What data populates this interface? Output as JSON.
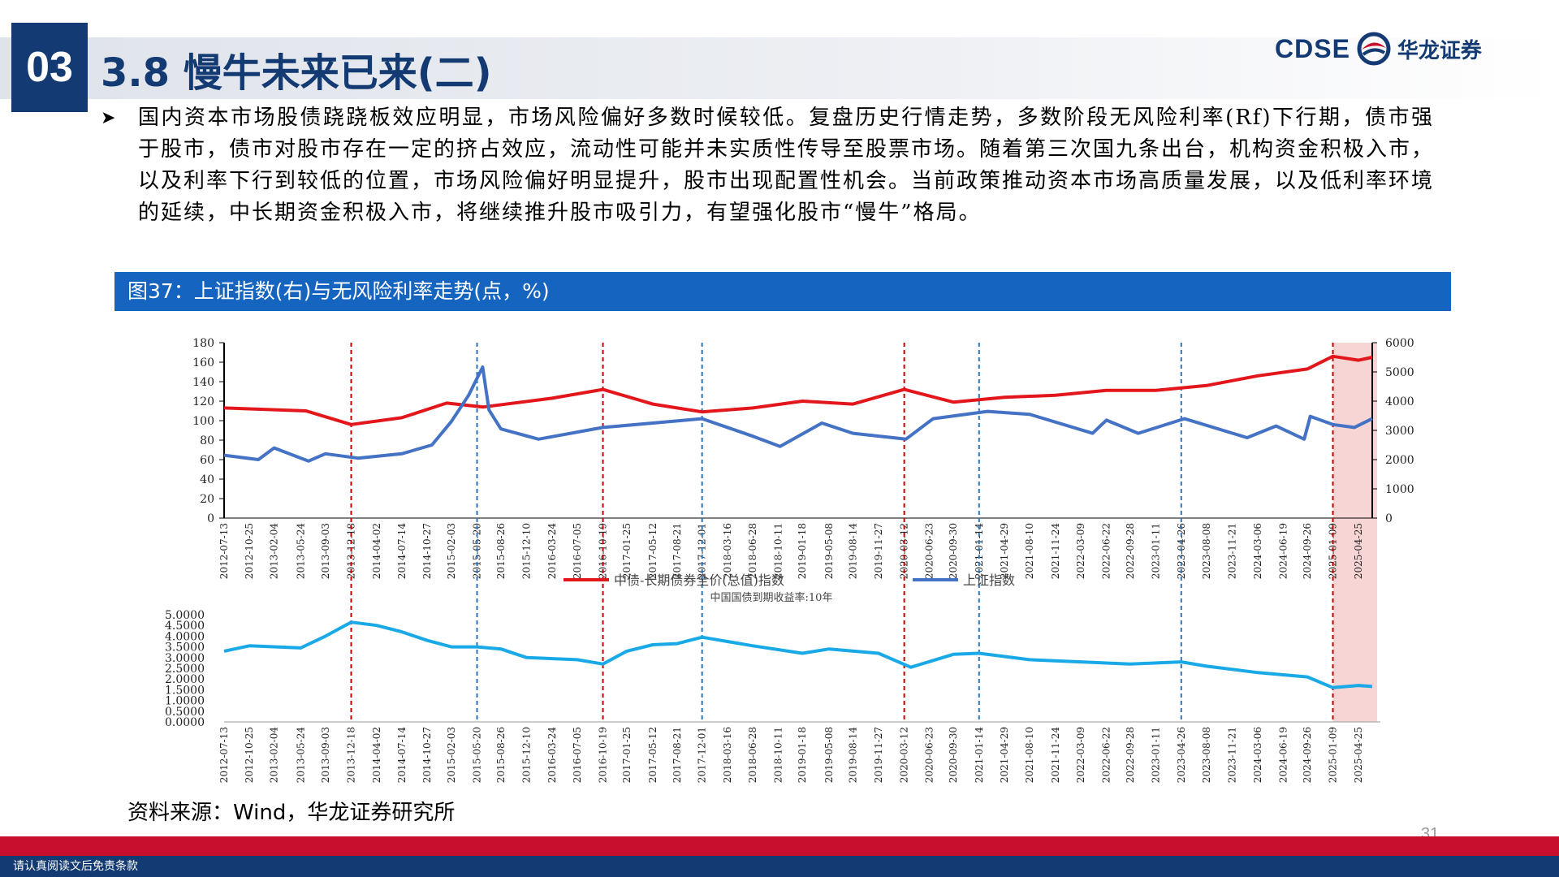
{
  "header": {
    "section_number": "03",
    "title": "3.8 慢牛未来已来(二)",
    "logo_en": "CDSE",
    "logo_cn": "华龙证券"
  },
  "bullet_text": "国内资本市场股债跷跷板效应明显，市场风险偏好多数时候较低。复盘历史行情走势，多数阶段无风险利率(Rf)下行期，债市强于股市，债市对股市存在一定的挤占效应，流动性可能并未实质性传导至股票市场。随着第三次国九条出台，机构资金积极入市，以及利率下行到较低的位置，市场风险偏好明显提升，股市出现配置性机会。当前政策推动资本市场高质量发展，以及低利率环境的延续，中长期资金积极入市，将继续推升股市吸引力，有望强化股市“慢牛”格局。",
  "figure_title": "图37：上证指数(右)与无风险利率走势(点，%)",
  "source": "资料来源：Wind，华龙证券研究所",
  "page_number": "31",
  "footer_disclaimer": "请认真阅读文后免责条款",
  "colors": {
    "navy": "#133a72",
    "fig_bar": "#1565c0",
    "bond_series": "#e3171b",
    "sse_series": "#4472c4",
    "yield_series": "#19a9e6",
    "red_vline": "#c00000",
    "blue_vline": "#2e75b6",
    "highlight": "#f4c7c7"
  },
  "chart_data": [
    {
      "type": "line",
      "x_type": "date",
      "x_range": [
        "2012-07-13",
        "2025-06-30"
      ],
      "ticks": [
        "2012-07-13",
        "2012-10-25",
        "2013-02-04",
        "2013-05-24",
        "2013-09-03",
        "2013-12-18",
        "2014-04-02",
        "2014-07-14",
        "2014-10-27",
        "2015-02-03",
        "2015-05-20",
        "2015-08-26",
        "2015-12-10",
        "2016-03-24",
        "2016-07-05",
        "2016-10-19",
        "2017-01-25",
        "2017-05-12",
        "2017-08-21",
        "2017-12-01",
        "2018-03-16",
        "2018-06-28",
        "2018-10-11",
        "2019-01-18",
        "2019-05-08",
        "2019-08-14",
        "2019-11-27",
        "2020-03-12",
        "2020-06-23",
        "2020-09-30",
        "2021-01-14",
        "2021-04-29",
        "2021-08-10",
        "2021-11-24",
        "2022-03-09",
        "2022-06-22",
        "2022-09-28",
        "2023-01-11",
        "2023-04-26",
        "2023-08-08",
        "2023-11-21",
        "2024-03-06",
        "2024-06-19",
        "2024-09-26",
        "2025-01-09",
        "2025-04-25"
      ],
      "y_left_range": [
        0,
        180
      ],
      "y_left_ticks": [
        0,
        20,
        40,
        60,
        80,
        100,
        120,
        140,
        160,
        180
      ],
      "y_right_range": [
        0,
        6000
      ],
      "y_right_ticks": [
        0,
        1000,
        2000,
        3000,
        4000,
        5000,
        6000
      ],
      "legend_position": "bottom",
      "series": [
        {
          "name": "中债-长期债券全价(总值)指数",
          "axis": "left",
          "color": "#e3171b",
          "x": [
            "2012-07-13",
            "2013-06-15",
            "2013-12-18",
            "2014-07-14",
            "2015-01-15",
            "2015-06-15",
            "2016-03-24",
            "2016-10-19",
            "2017-05-12",
            "2017-12-01",
            "2018-06-28",
            "2019-01-18",
            "2019-08-14",
            "2020-03-12",
            "2020-09-30",
            "2021-04-29",
            "2021-11-24",
            "2022-06-22",
            "2023-01-11",
            "2023-08-08",
            "2024-03-06",
            "2024-09-26",
            "2025-01-09",
            "2025-04-25",
            "2025-06-20"
          ],
          "values": [
            113,
            110,
            96,
            103,
            118,
            114,
            123,
            132,
            117,
            109,
            113,
            120,
            117,
            132,
            119,
            124,
            126,
            131,
            131,
            136,
            146,
            153,
            166,
            162,
            165
          ]
        },
        {
          "name": "上证指数",
          "axis": "right",
          "color": "#4472c4",
          "x": [
            "2012-07-13",
            "2012-12-01",
            "2013-02-04",
            "2013-06-25",
            "2013-09-03",
            "2014-01-15",
            "2014-07-14",
            "2014-11-15",
            "2015-02-03",
            "2015-04-15",
            "2015-06-12",
            "2015-07-08",
            "2015-08-26",
            "2016-01-28",
            "2016-10-19",
            "2017-05-12",
            "2017-12-01",
            "2018-06-28",
            "2018-10-18",
            "2019-04-08",
            "2019-08-14",
            "2020-03-19",
            "2020-07-09",
            "2021-02-18",
            "2021-08-10",
            "2022-04-26",
            "2022-06-22",
            "2022-10-31",
            "2023-05-09",
            "2024-01-22",
            "2024-05-20",
            "2024-09-13",
            "2024-10-08",
            "2025-01-09",
            "2025-04-07",
            "2025-06-20"
          ],
          "values": [
            2150,
            2000,
            2400,
            1950,
            2200,
            2050,
            2200,
            2500,
            3300,
            4200,
            5166,
            3700,
            3050,
            2700,
            3100,
            3250,
            3400,
            2800,
            2450,
            3250,
            2900,
            2700,
            3400,
            3650,
            3550,
            2900,
            3350,
            2900,
            3400,
            2750,
            3150,
            2700,
            3480,
            3200,
            3100,
            3400
          ]
        }
      ]
    },
    {
      "type": "line",
      "title": "中国国债到期收益率:10年",
      "x_type": "date",
      "x_range": [
        "2012-07-13",
        "2025-06-30"
      ],
      "ticks": [
        "2012-07-13",
        "2012-10-25",
        "2013-02-04",
        "2013-05-24",
        "2013-09-03",
        "2013-12-18",
        "2014-04-02",
        "2014-07-14",
        "2014-10-27",
        "2015-02-03",
        "2015-05-20",
        "2015-08-26",
        "2015-12-10",
        "2016-03-24",
        "2016-07-05",
        "2016-10-19",
        "2017-01-25",
        "2017-05-12",
        "2017-08-21",
        "2017-12-01",
        "2018-03-16",
        "2018-06-28",
        "2018-10-11",
        "2019-01-18",
        "2019-05-08",
        "2019-08-14",
        "2019-11-27",
        "2020-03-12",
        "2020-06-23",
        "2020-09-30",
        "2021-01-14",
        "2021-04-29",
        "2021-08-10",
        "2021-11-24",
        "2022-03-09",
        "2022-06-22",
        "2022-09-28",
        "2023-01-11",
        "2023-04-26",
        "2023-08-08",
        "2023-11-21",
        "2024-03-06",
        "2024-06-19",
        "2024-09-26",
        "2025-01-09",
        "2025-04-25"
      ],
      "y_range": [
        0,
        5
      ],
      "y_ticks": [
        "0.0000",
        "0.5000",
        "1.0000",
        "1.5000",
        "2.0000",
        "2.5000",
        "3.0000",
        "3.5000",
        "4.0000",
        "4.5000",
        "5.0000"
      ],
      "series": [
        {
          "name": "中国国债到期收益率:10年",
          "color": "#19a9e6",
          "x": [
            "2012-07-13",
            "2012-10-25",
            "2013-05-24",
            "2013-09-03",
            "2013-12-18",
            "2014-04-02",
            "2014-07-14",
            "2014-10-27",
            "2015-02-03",
            "2015-05-20",
            "2015-08-26",
            "2015-12-10",
            "2016-07-05",
            "2016-10-19",
            "2017-01-25",
            "2017-05-12",
            "2017-08-21",
            "2017-12-01",
            "2018-06-28",
            "2019-01-18",
            "2019-05-08",
            "2019-11-27",
            "2020-04-08",
            "2020-09-30",
            "2021-01-14",
            "2021-08-10",
            "2022-03-09",
            "2022-09-28",
            "2023-04-26",
            "2023-08-08",
            "2024-03-06",
            "2024-09-26",
            "2025-01-09",
            "2025-04-25",
            "2025-06-20"
          ],
          "values": [
            3.3,
            3.55,
            3.45,
            4.0,
            4.65,
            4.5,
            4.2,
            3.8,
            3.5,
            3.5,
            3.4,
            3.0,
            2.9,
            2.7,
            3.3,
            3.6,
            3.65,
            3.95,
            3.55,
            3.2,
            3.4,
            3.2,
            2.55,
            3.15,
            3.2,
            2.9,
            2.8,
            2.7,
            2.8,
            2.6,
            2.3,
            2.1,
            1.6,
            1.7,
            1.65
          ]
        }
      ]
    }
  ],
  "markers": {
    "red_dates": [
      "2013-12-18",
      "2016-10-19",
      "2020-03-12",
      "2025-01-09"
    ],
    "blue_dates": [
      "2015-05-20",
      "2017-12-01",
      "2021-01-14",
      "2023-04-26"
    ],
    "highlight_range": [
      "2025-01-09",
      "2025-06-20"
    ]
  }
}
